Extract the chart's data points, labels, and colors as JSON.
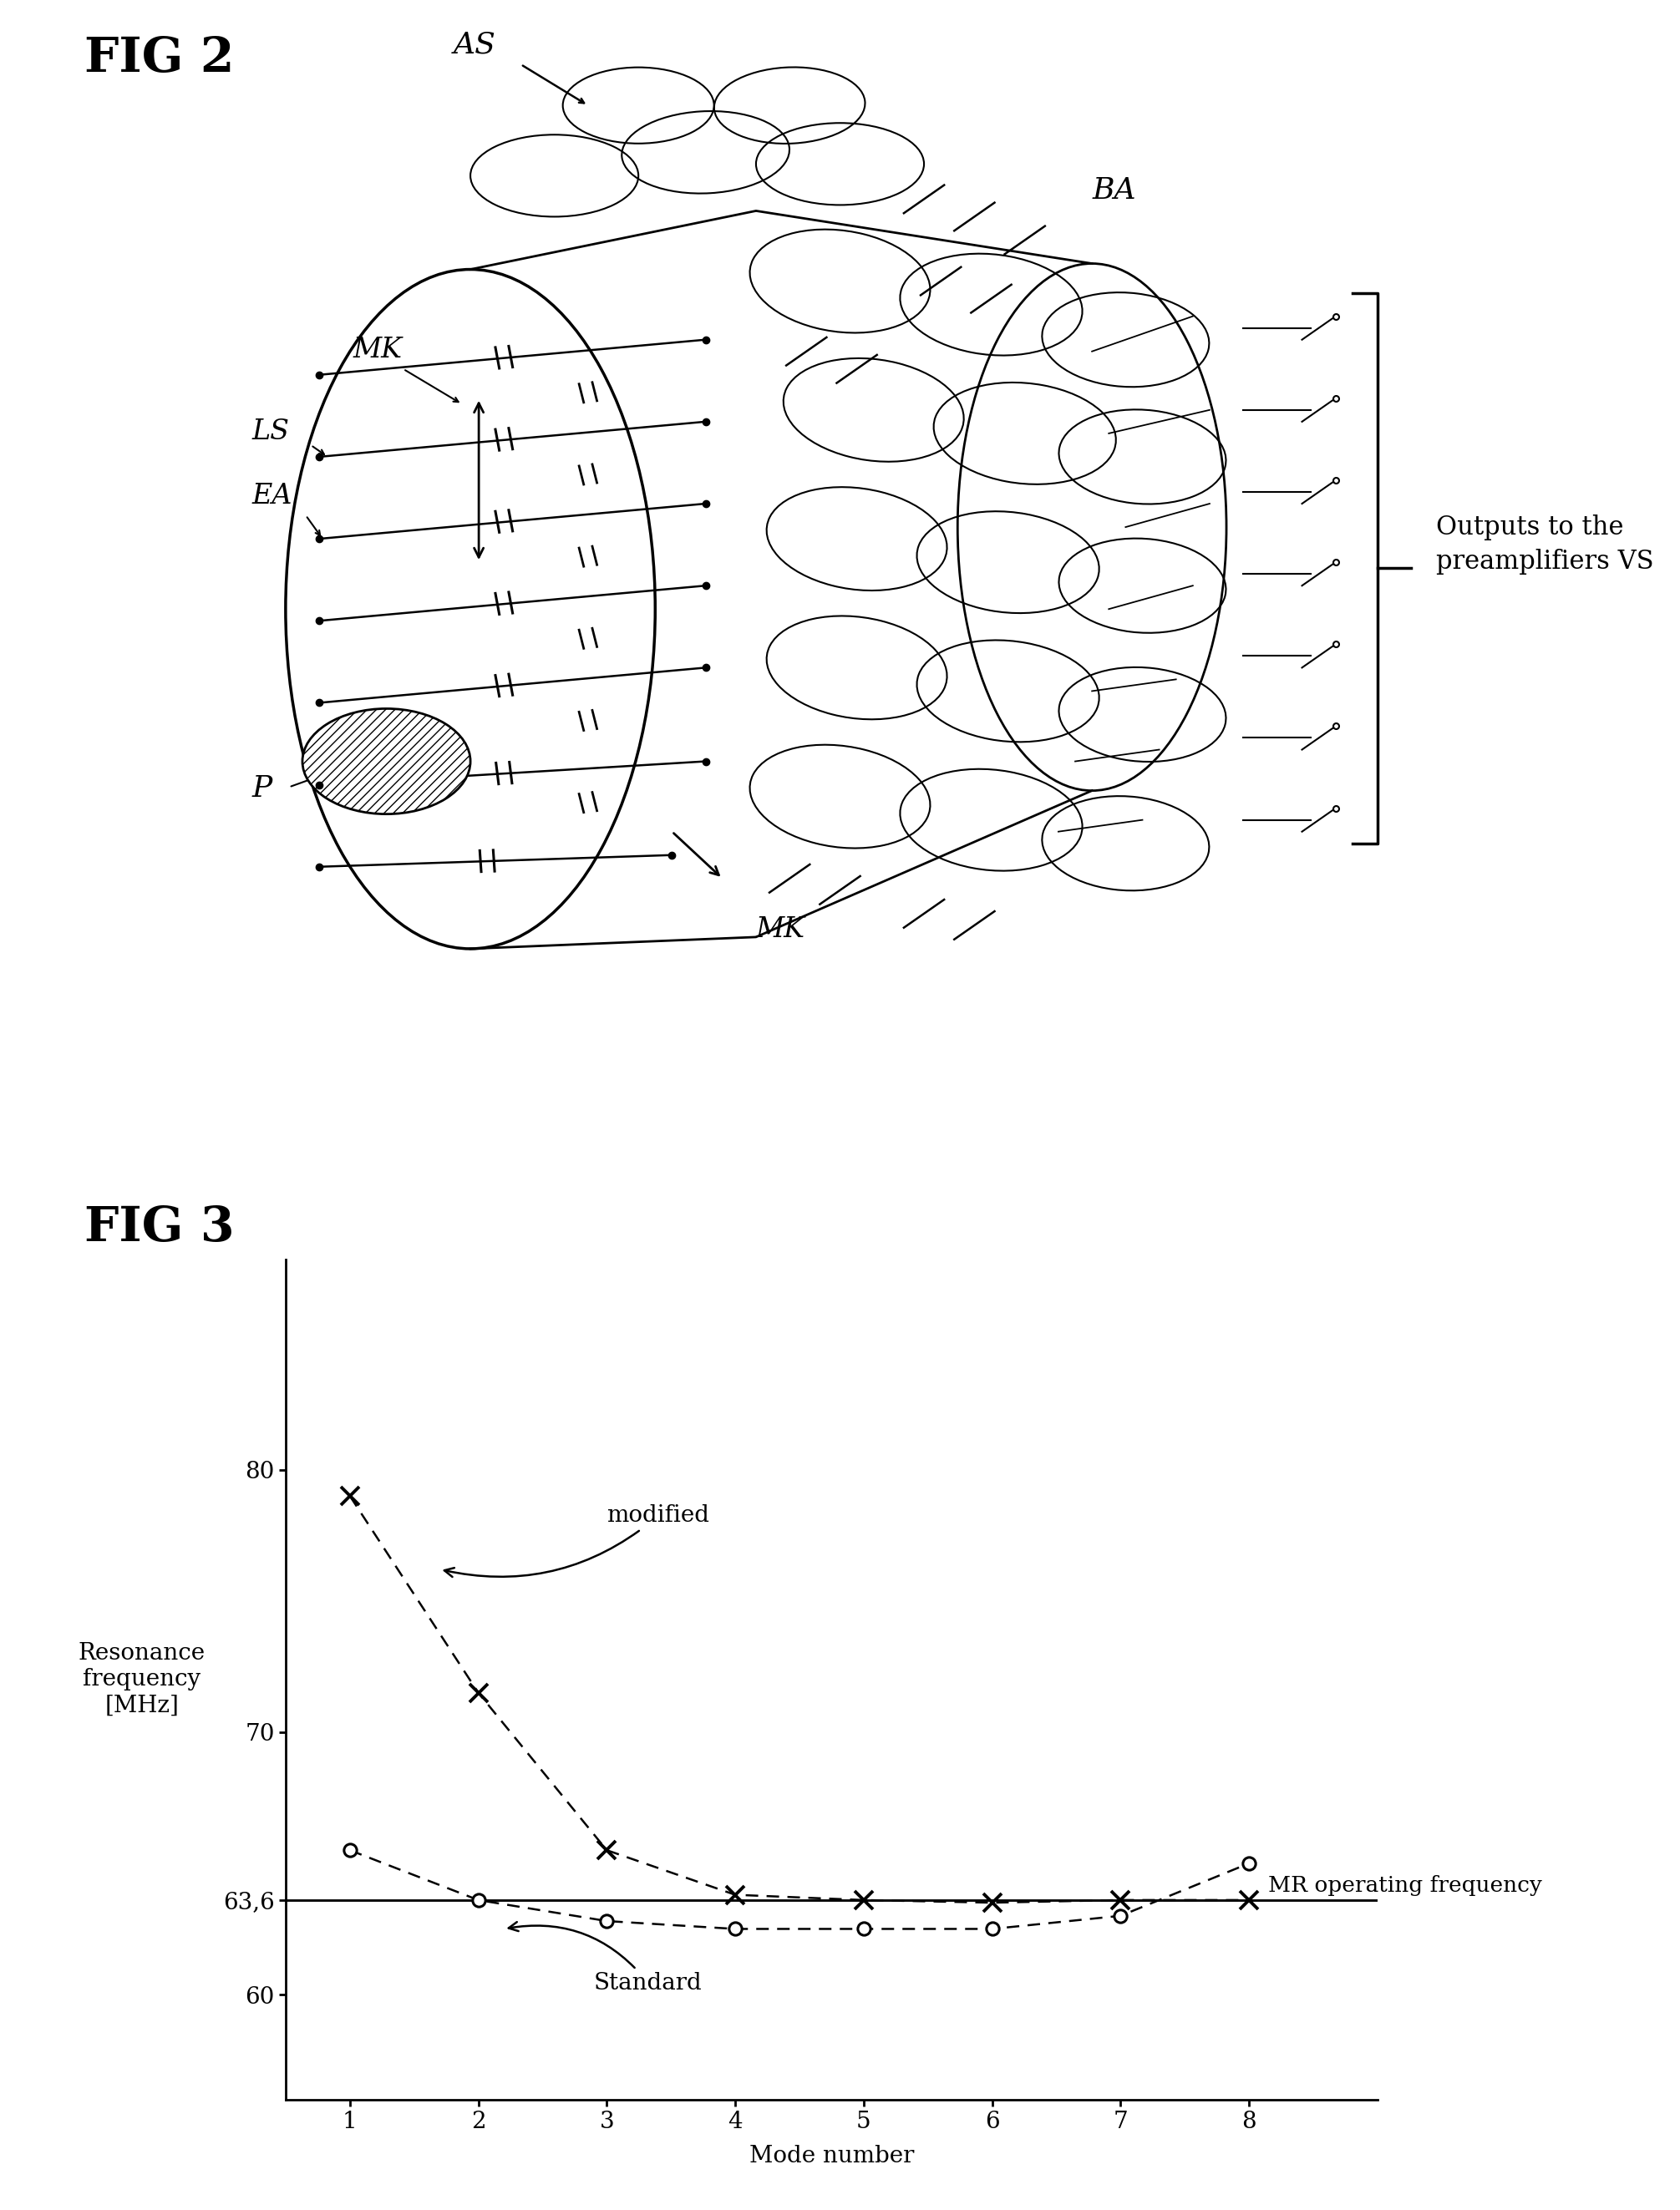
{
  "fig2_title": "FIG 2",
  "fig3_title": "FIG 3",
  "fig3_ylabel": "Resonance\nfrequency\n[MHz]",
  "fig3_xlabel": "Mode number",
  "fig3_mr_label": "MR operating frequency",
  "fig3_mr_freq": 63.6,
  "modified_x": [
    1,
    2,
    3,
    4,
    5,
    6,
    7,
    8
  ],
  "modified_y": [
    79.0,
    71.5,
    65.5,
    63.8,
    63.6,
    63.5,
    63.6,
    63.6
  ],
  "standard_x": [
    1,
    2,
    3,
    4,
    5,
    6,
    7,
    8
  ],
  "standard_y": [
    65.5,
    63.6,
    62.8,
    62.5,
    62.5,
    62.5,
    63.0,
    65.0
  ],
  "modified_label": "modified",
  "standard_label": "Standard",
  "background_color": "#ffffff"
}
